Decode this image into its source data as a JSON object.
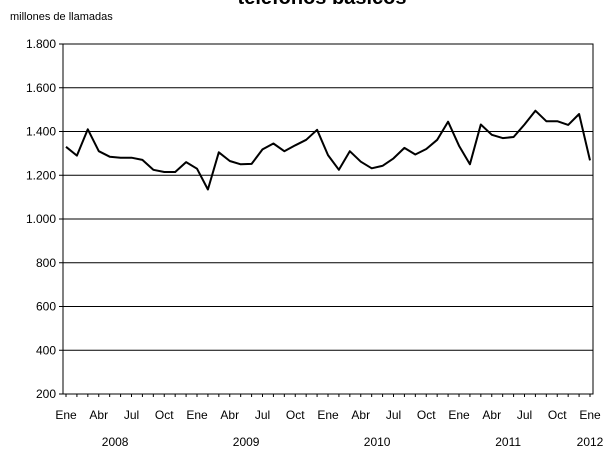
{
  "chart_data": {
    "type": "line",
    "title": "teléfonos básicos",
    "ylabel": "millones de llamadas",
    "xlabel": "",
    "ylim": [
      200,
      1800
    ],
    "yticks": [
      200,
      400,
      600,
      800,
      1000,
      1200,
      1400,
      1600,
      1800
    ],
    "ytick_labels": [
      "200",
      "400",
      "600",
      "800",
      "1.000",
      "1.200",
      "1.400",
      "1.600",
      "1.800"
    ],
    "xtick_labels": [
      "Ene",
      "Abr",
      "Jul",
      "Oct",
      "Ene",
      "Abr",
      "Jul",
      "Oct",
      "Ene",
      "Abr",
      "Jul",
      "Oct",
      "Ene",
      "Abr",
      "Jul",
      "Oct",
      "Ene"
    ],
    "year_labels": [
      "2008",
      "2009",
      "2010",
      "2011",
      "2012"
    ],
    "grid": true,
    "colors": {
      "line": "#000000",
      "grid": "#000000"
    },
    "series": [
      {
        "x": [
          "2008-01",
          "2008-02",
          "2008-03",
          "2008-04",
          "2008-05",
          "2008-06",
          "2008-07",
          "2008-08",
          "2008-09",
          "2008-10",
          "2008-11",
          "2008-12",
          "2009-01",
          "2009-02",
          "2009-03",
          "2009-04",
          "2009-05",
          "2009-06",
          "2009-07",
          "2009-08",
          "2009-09",
          "2009-10",
          "2009-11",
          "2009-12",
          "2010-01",
          "2010-02",
          "2010-03",
          "2010-04",
          "2010-05",
          "2010-06",
          "2010-07",
          "2010-08",
          "2010-09",
          "2010-10",
          "2010-11",
          "2010-12",
          "2011-01",
          "2011-02",
          "2011-03",
          "2011-04",
          "2011-05",
          "2011-06",
          "2011-07",
          "2011-08",
          "2011-09",
          "2011-10",
          "2011-11",
          "2011-12",
          "2012-01"
        ],
        "values": [
          1330,
          1290,
          1410,
          1310,
          1285,
          1280,
          1280,
          1270,
          1225,
          1215,
          1215,
          1260,
          1230,
          1135,
          1305,
          1265,
          1250,
          1252,
          1318,
          1345,
          1310,
          1337,
          1362,
          1408,
          1292,
          1225,
          1310,
          1262,
          1232,
          1243,
          1277,
          1325,
          1295,
          1320,
          1362,
          1445,
          1335,
          1250,
          1432,
          1385,
          1370,
          1375,
          1432,
          1495,
          1447,
          1447,
          1430,
          1480,
          1268
        ]
      }
    ]
  }
}
